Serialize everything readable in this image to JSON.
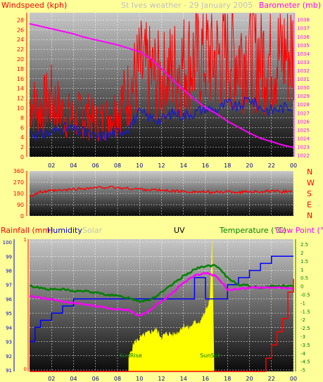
{
  "colors": {
    "background": "#ffff99",
    "plot_top": "#c8c8c8",
    "plot_bottom": "#0a0a0a",
    "grid": "#ffffff",
    "wind": "#ff0000",
    "wind_avg": "#1a1acc",
    "barometer": "#ff00ff",
    "direction": "#ff0000",
    "humidity": "#0000ff",
    "temperature": "#008000",
    "dew_point": "#ff00ff",
    "solar": "#ffff00",
    "rain": "#ff0000",
    "left_axis": "#ff0000",
    "blue_axis": "#0000cc",
    "green_axis": "#008000",
    "mag_axis": "#ff00ff",
    "title_text": "#c0c0c0"
  },
  "title": "St Ives weather - 29 January 2005",
  "chart_data": [
    {
      "id": "wind-baro",
      "type": "line",
      "ylabel": "Windspeed (kph)",
      "y2label": "Barometer (mb)",
      "x_ticks": [
        "02",
        "04",
        "06",
        "08",
        "10",
        "12",
        "14",
        "16",
        "18",
        "20",
        "22",
        "00"
      ],
      "y_ticks": [
        "0",
        "2",
        "4",
        "6",
        "8",
        "10",
        "12",
        "14",
        "16",
        "18",
        "20",
        "22",
        "24",
        "26",
        "28"
      ],
      "y2_ticks": [
        "1022",
        "1023",
        "1024",
        "1025",
        "1026",
        "1027",
        "1028",
        "1029",
        "1030",
        "1031",
        "1032",
        "1033",
        "1034",
        "1035",
        "1036",
        "1037",
        "1038"
      ],
      "xlim": [
        0,
        24
      ],
      "ylim": [
        0,
        29.5
      ],
      "y2lim": [
        1021.8,
        1038.8
      ],
      "series": [
        {
          "name": "Barometer (mb)",
          "axis": "right",
          "x": [
            0,
            1,
            2,
            3,
            4,
            5,
            6,
            7,
            8,
            9,
            10,
            11,
            12,
            13,
            14,
            15,
            16,
            17,
            18,
            19,
            20,
            21,
            22,
            23,
            24
          ],
          "y": [
            1037.5,
            1037.2,
            1036.9,
            1036.6,
            1036.3,
            1035.9,
            1035.6,
            1035.3,
            1035.0,
            1034.6,
            1034.2,
            1033.4,
            1032.2,
            1030.9,
            1029.7,
            1028.6,
            1027.6,
            1026.9,
            1026.0,
            1025.3,
            1024.6,
            1024.0,
            1023.6,
            1023.2,
            1022.9
          ]
        },
        {
          "name": "Average wind speed",
          "axis": "left",
          "x": [
            0,
            1,
            2,
            3,
            4,
            5,
            6,
            7,
            8,
            9,
            10,
            11,
            12,
            13,
            14,
            15,
            16,
            17,
            18,
            19,
            20,
            21,
            22,
            23,
            24
          ],
          "y": [
            5,
            4.5,
            5,
            6,
            5.5,
            5,
            4,
            4.5,
            5,
            6,
            9,
            8,
            7.5,
            9,
            8.5,
            9,
            10,
            9.5,
            11,
            10,
            12,
            10,
            9.5,
            10,
            10.5
          ]
        },
        {
          "name": "Wind gust",
          "axis": "left",
          "x": [
            0,
            1,
            2,
            3,
            4,
            5,
            6,
            7,
            8,
            9,
            10,
            11,
            12,
            13,
            14,
            15,
            16,
            17,
            18,
            19,
            20,
            21,
            22,
            23,
            24
          ],
          "y": [
            11,
            10,
            12,
            9,
            8,
            9,
            7,
            8,
            10,
            13,
            18,
            17,
            16,
            18,
            19,
            20,
            21,
            20,
            22,
            21,
            22,
            21,
            20,
            21,
            22
          ]
        }
      ]
    },
    {
      "id": "direction",
      "type": "line",
      "y_ticks": [
        "0",
        "90",
        "180",
        "270",
        "360"
      ],
      "ylim": [
        0,
        360
      ],
      "right_labels": [
        "N",
        "W",
        "S",
        "E",
        "N"
      ],
      "series": [
        {
          "name": "Wind direction",
          "x": [
            0,
            1,
            2,
            3,
            4,
            5,
            6,
            7,
            8,
            9,
            10,
            11,
            12,
            13,
            14,
            15,
            16,
            17,
            18,
            19,
            20,
            21,
            22,
            23,
            24
          ],
          "y": [
            160,
            190,
            200,
            205,
            215,
            220,
            225,
            230,
            225,
            220,
            215,
            210,
            205,
            200,
            195,
            195,
            190,
            190,
            195,
            190,
            195,
            195,
            195,
            195,
            200
          ]
        }
      ]
    },
    {
      "id": "temp-humidity",
      "type": "line",
      "labels": [
        "Rainfall (mm)",
        "Humidity",
        "Solar",
        "UV",
        "Temperature (°C)",
        "Dew Point (°C)"
      ],
      "y_ticks": [
        "91",
        "92",
        "93",
        "94",
        "95",
        "96",
        "97",
        "98",
        "99",
        "100"
      ],
      "y2_ticks": [
        "-5",
        "-4.5",
        "-4",
        "-3.5",
        "-3",
        "-2.5",
        "-2",
        "-1.5",
        "-1",
        "-0.5",
        "0",
        "0.5",
        "1",
        "1.5",
        "2",
        "2.5"
      ],
      "rain_ticks": [
        "0",
        "1"
      ],
      "ylim": [
        90.9,
        100.2
      ],
      "y2lim": [
        -5.1,
        2.8
      ],
      "annotations": [
        "SunRise",
        "SunSet"
      ],
      "series": [
        {
          "name": "Humidity",
          "axis": "left",
          "x": [
            0,
            0.5,
            1,
            2,
            3,
            4,
            5,
            6,
            7,
            8,
            9,
            10,
            11,
            12,
            13,
            14,
            15,
            16,
            17,
            18,
            19,
            20,
            21,
            22,
            23,
            24
          ],
          "y": [
            93,
            94,
            94.5,
            95,
            95.5,
            96,
            96,
            96,
            96,
            96,
            96,
            96,
            96,
            96,
            96,
            96,
            97.5,
            96,
            96,
            97,
            97.5,
            98,
            98.5,
            99,
            99,
            99
          ]
        },
        {
          "name": "Temperature (°C)",
          "axis": "right",
          "x": [
            0,
            1,
            2,
            3,
            4,
            5,
            6,
            7,
            8,
            9,
            10,
            11,
            12,
            13,
            14,
            15,
            16,
            17,
            18,
            19,
            20,
            21,
            22,
            23,
            24
          ],
          "y": [
            0,
            -0.1,
            -0.2,
            -0.2,
            -0.3,
            -0.3,
            -0.4,
            -0.5,
            -0.6,
            -0.7,
            -0.9,
            -0.8,
            -0.4,
            0.1,
            0.6,
            1.0,
            1.2,
            1.2,
            0.5,
            0.1,
            0.0,
            -0.1,
            0.0,
            0.0,
            0.0
          ]
        },
        {
          "name": "Dew Point (°C)",
          "axis": "right",
          "x": [
            0,
            1,
            2,
            3,
            4,
            5,
            6,
            7,
            8,
            9,
            10,
            11,
            12,
            13,
            14,
            15,
            16,
            17,
            18,
            19,
            20,
            21,
            22,
            23,
            24
          ],
          "y": [
            -0.6,
            -0.7,
            -0.8,
            -0.9,
            -1.0,
            -1.1,
            -1.2,
            -1.3,
            -1.4,
            -1.4,
            -1.8,
            -1.4,
            -0.9,
            -0.4,
            0.2,
            0.6,
            0.8,
            0.6,
            -0.2,
            -0.2,
            -0.1,
            -0.1,
            -0.1,
            -0.1,
            -0.2
          ]
        },
        {
          "name": "Solar",
          "axis": "fraction",
          "x": [
            9,
            9.5,
            10,
            10.5,
            11,
            11.5,
            12,
            12.5,
            13,
            13.5,
            14,
            14.5,
            15,
            15.5,
            16,
            16.4,
            16.6,
            16.8
          ],
          "y": [
            0.1,
            0.22,
            0.25,
            0.28,
            0.3,
            0.32,
            0.26,
            0.29,
            0.28,
            0.3,
            0.35,
            0.33,
            0.37,
            0.38,
            0.45,
            0.55,
            1.0,
            0.05
          ]
        },
        {
          "name": "Rainfall (mm)",
          "axis": "rain",
          "x": [
            0,
            21,
            21.5,
            22,
            22.5,
            23,
            23.5,
            24
          ],
          "y": [
            0,
            0,
            0.1,
            0.2,
            0.3,
            0.4,
            0.6,
            0.7
          ]
        }
      ]
    }
  ]
}
